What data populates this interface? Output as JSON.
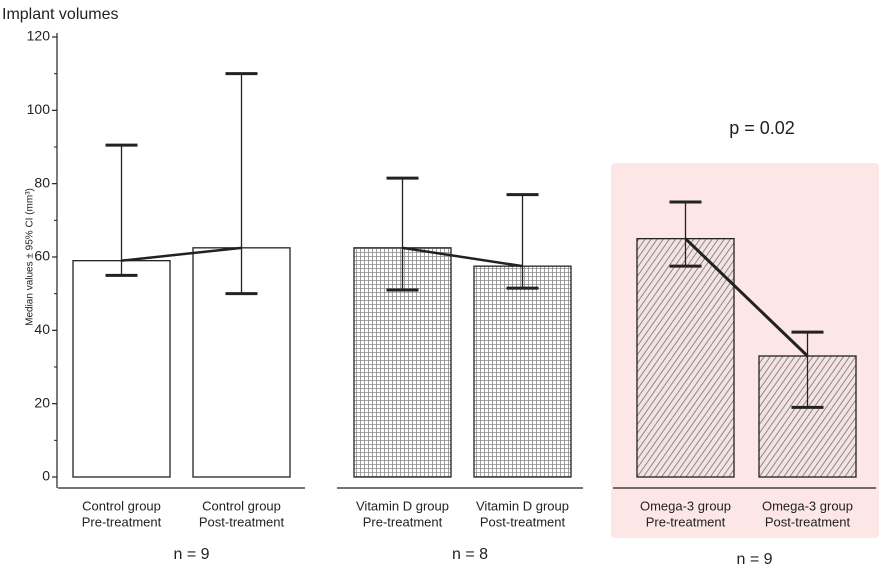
{
  "chart_data": {
    "type": "bar",
    "title": "Implant volumes",
    "ylabel": "Median values ± 95% CI (mm³)",
    "categories": [
      {
        "group": "Control group",
        "phase": "Pre-treatment"
      },
      {
        "group": "Control group",
        "phase": "Post-treatment"
      },
      {
        "group": "Vitamin D group",
        "phase": "Pre-treatment"
      },
      {
        "group": "Vitamin D group",
        "phase": "Post-treatment"
      },
      {
        "group": "Omega-3 group",
        "phase": "Pre-treatment"
      },
      {
        "group": "Omega-3 group",
        "phase": "Post-treatment"
      }
    ],
    "values": [
      59,
      62.5,
      62.5,
      57.5,
      65,
      33
    ],
    "ci_upper": [
      90.5,
      110,
      81.5,
      77,
      75,
      39.5
    ],
    "ci_lower": [
      55,
      50,
      51,
      51.5,
      57.5,
      19
    ],
    "groups": [
      {
        "n_label": "n = 9",
        "pattern": "none",
        "highlight": false
      },
      {
        "n_label": "n = 8",
        "pattern": "grid",
        "highlight": false
      },
      {
        "n_label": "n = 9",
        "pattern": "diagonal",
        "highlight": true
      }
    ],
    "annotations": [
      {
        "text": "p = 0.02"
      }
    ],
    "color": "#ffffff",
    "pattern_color": "#8a8a8a",
    "highlight_color": "#fde6e6",
    "ylim": [
      0,
      120
    ],
    "yticks": [
      0,
      20,
      40,
      60,
      80,
      100,
      120
    ],
    "yminorticks": [
      10,
      30,
      50,
      70,
      90,
      110
    ]
  }
}
